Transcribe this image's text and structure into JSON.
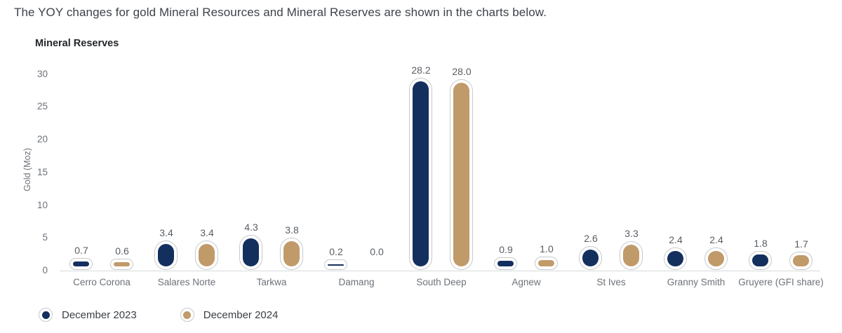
{
  "intro": "The YOY changes for gold Mineral Resources and Mineral Reserves are shown in the charts below.",
  "chart_data": {
    "type": "bar",
    "title": "Mineral Reserves",
    "xlabel": "",
    "ylabel": "Gold (Moz)",
    "categories": [
      "Cerro Corona",
      "Salares Norte",
      "Tarkwa",
      "Damang",
      "South Deep",
      "Agnew",
      "St Ives",
      "Granny Smith",
      "Gruyere (GFI share)"
    ],
    "series": [
      {
        "name": "December 2023",
        "color": "#132f5e",
        "values": [
          0.7,
          3.4,
          4.3,
          0.2,
          28.2,
          0.9,
          2.6,
          2.4,
          1.8
        ]
      },
      {
        "name": "December 2024",
        "color": "#c19a6a",
        "values": [
          0.6,
          3.4,
          3.8,
          0.0,
          28.0,
          1.0,
          3.3,
          2.4,
          1.7
        ]
      }
    ],
    "yticks": [
      0,
      5,
      10,
      15,
      20,
      25,
      30
    ],
    "ylim": [
      0,
      30
    ],
    "grid": false,
    "value_labels": true,
    "legend_position": "bottom-left"
  },
  "colors": {
    "series_2023": "#132f5e",
    "series_2024": "#c19a6a",
    "pill_ring": "#c7c9cb",
    "axis_line": "#d8d9da",
    "axis_text": "#6d7278",
    "value_text": "#585d64",
    "title_text": "#23262b",
    "intro_text": "#3d424b",
    "background": "#ffffff"
  }
}
